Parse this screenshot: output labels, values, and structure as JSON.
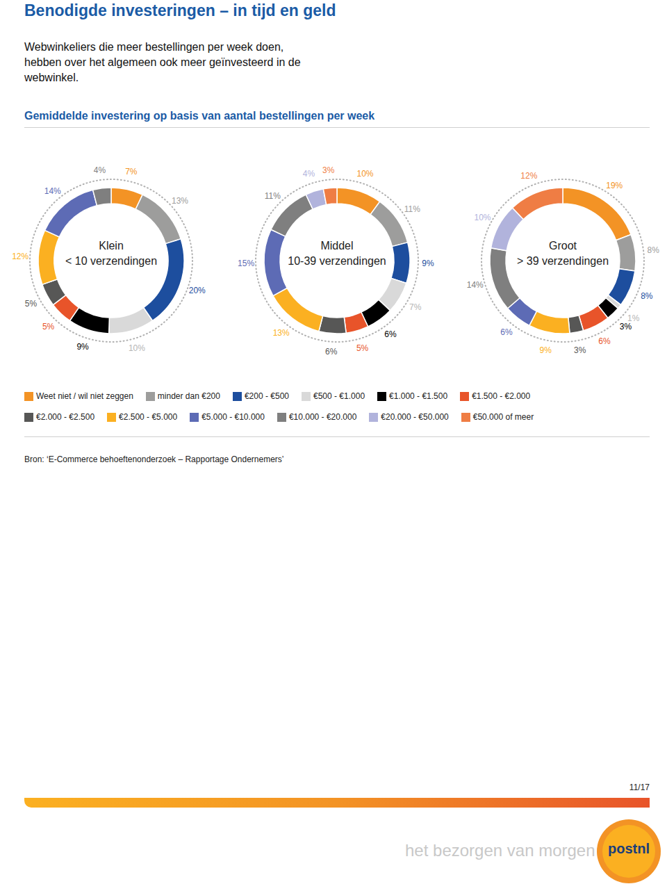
{
  "header": "Benodigde investeringen – in tijd en geld",
  "intro": "Webwinkeliers die meer bestellingen per week doen, hebben over het algemeen ook meer geïnvesteerd in de webwinkel.",
  "section_title": "Gemiddelde investering op basis van aantal bestellingen per week",
  "source": "Bron: ‘E-Commerce behoeftenonderzoek – Rapportage Ondernemers’",
  "page": "11/17",
  "tagline": "het bezorgen van morgen",
  "logo": "postnl",
  "chart_data": [
    {
      "type": "pie",
      "title": "Klein",
      "subtitle": "< 10 verzendingen",
      "legend": "bottom",
      "data_labels": true,
      "categories": [
        "Weet niet / wil niet zeggen",
        "minder dan €200",
        "€200 - €500",
        "€500 - €1.000",
        "€1.000 - €1.500",
        "€1.500 - €2.000",
        "€2.000 - €2.500",
        "€2.500 - €5.000",
        "€5.000 - €10.000",
        "€10.000 - €20.000"
      ],
      "values": [
        7,
        13,
        20,
        10,
        9,
        5,
        5,
        12,
        14,
        4
      ],
      "value_labels": [
        "7%",
        "13%",
        "20%",
        "10%",
        "9%",
        "5%",
        "5%",
        "12%",
        "14%",
        "4%"
      ],
      "colors": [
        "#f39325",
        "#9d9d9c",
        "#1d4e9e",
        "#d9d9d9",
        "#000000",
        "#e8542a",
        "#575756",
        "#fbb021",
        "#5d6bb5",
        "#7f7f7f"
      ]
    },
    {
      "type": "pie",
      "title": "Middel",
      "subtitle": "10-39 verzendingen",
      "legend": "bottom",
      "data_labels": true,
      "categories": [
        "Weet niet / wil niet zeggen",
        "minder dan €200",
        "€200 - €500",
        "€500 - €1.000",
        "€1.000 - €1.500",
        "€1.500 - €2.000",
        "€2.000 - €2.500",
        "€2.500 - €5.000",
        "€5.000 - €10.000",
        "€10.000 - €20.000",
        "€20.000 - €50.000",
        "€50.000 of meer"
      ],
      "values": [
        10,
        11,
        9,
        7,
        6,
        5,
        6,
        13,
        15,
        11,
        4,
        3
      ],
      "value_labels": [
        "10%",
        "11%",
        "9%",
        "7%",
        "6%",
        "5%",
        "6%",
        "13%",
        "15%",
        "11%",
        "4%",
        "3%"
      ],
      "colors": [
        "#f39325",
        "#9d9d9c",
        "#1d4e9e",
        "#d9d9d9",
        "#000000",
        "#e8542a",
        "#575756",
        "#fbb021",
        "#5d6bb5",
        "#7f7f7f",
        "#b1b3dc",
        "#ef7d44"
      ]
    },
    {
      "type": "pie",
      "title": "Groot",
      "subtitle": "> 39 verzendingen",
      "legend": "bottom",
      "data_labels": true,
      "categories": [
        "Weet niet / wil niet zeggen",
        "minder dan €200",
        "€200 - €500",
        "€500 - €1.000",
        "€1.000 - €1.500",
        "€1.500 - €2.000",
        "€2.000 - €2.500",
        "€2.500 - €5.000",
        "€5.000 - €10.000",
        "€10.000 - €20.000",
        "€20.000 - €50.000",
        "€50.000 of meer"
      ],
      "values": [
        19,
        8,
        8,
        1,
        3,
        6,
        3,
        9,
        6,
        14,
        10,
        12
      ],
      "value_labels": [
        "19%",
        "8%",
        "8%",
        "1%",
        "3%",
        "6%",
        "3%",
        "9%",
        "6%",
        "14%",
        "10%",
        "12%"
      ],
      "colors": [
        "#f39325",
        "#9d9d9c",
        "#1d4e9e",
        "#d9d9d9",
        "#000000",
        "#e8542a",
        "#575756",
        "#fbb021",
        "#5d6bb5",
        "#7f7f7f",
        "#b1b3dc",
        "#ef7d44"
      ]
    }
  ]
}
